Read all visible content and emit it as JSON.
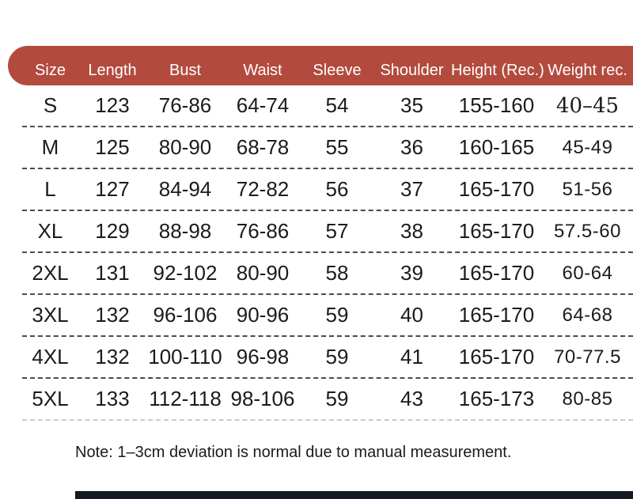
{
  "colors": {
    "header_bar": "#b24b3e",
    "bottom_bar": "#151924",
    "text": "#1b1b1b"
  },
  "table": {
    "columns": [
      {
        "key": "size",
        "label": "Size"
      },
      {
        "key": "length",
        "label": "Length"
      },
      {
        "key": "bust",
        "label": "Bust"
      },
      {
        "key": "waist",
        "label": "Waist"
      },
      {
        "key": "sleeve",
        "label": "Sleeve"
      },
      {
        "key": "shoulder",
        "label": "Shoulder"
      },
      {
        "key": "height",
        "label": "Height (Rec.)"
      },
      {
        "key": "weight",
        "label": "Weight rec."
      }
    ],
    "rows": [
      {
        "size": "S",
        "length": "123",
        "bust": "76-86",
        "waist": "64-74",
        "sleeve": "54",
        "shoulder": "35",
        "height": "155-160",
        "weight": "40–45"
      },
      {
        "size": "M",
        "length": "125",
        "bust": "80-90",
        "waist": "68-78",
        "sleeve": "55",
        "shoulder": "36",
        "height": "160-165",
        "weight": "45-49"
      },
      {
        "size": "L",
        "length": "127",
        "bust": "84-94",
        "waist": "72-82",
        "sleeve": "56",
        "shoulder": "37",
        "height": "165-170",
        "weight": "51-56"
      },
      {
        "size": "XL",
        "length": "129",
        "bust": "88-98",
        "waist": "76-86",
        "sleeve": "57",
        "shoulder": "38",
        "height": "165-170",
        "weight": "57.5-60"
      },
      {
        "size": "2XL",
        "length": "131",
        "bust": "92-102",
        "waist": "80-90",
        "sleeve": "58",
        "shoulder": "39",
        "height": "165-170",
        "weight": "60-64"
      },
      {
        "size": "3XL",
        "length": "132",
        "bust": "96-106",
        "waist": "90-96",
        "sleeve": "59",
        "shoulder": "40",
        "height": "165-170",
        "weight": "64-68"
      },
      {
        "size": "4XL",
        "length": "132",
        "bust": "100-110",
        "waist": "96-98",
        "sleeve": "59",
        "shoulder": "41",
        "height": "165-170",
        "weight": "70-77.5"
      },
      {
        "size": "5XL",
        "length": "133",
        "bust": "112-118",
        "waist": "98-106",
        "sleeve": "59",
        "shoulder": "43",
        "height": "165-173",
        "weight": "80-85"
      }
    ]
  },
  "note": "Note: 1–3cm deviation is normal due to manual measurement."
}
